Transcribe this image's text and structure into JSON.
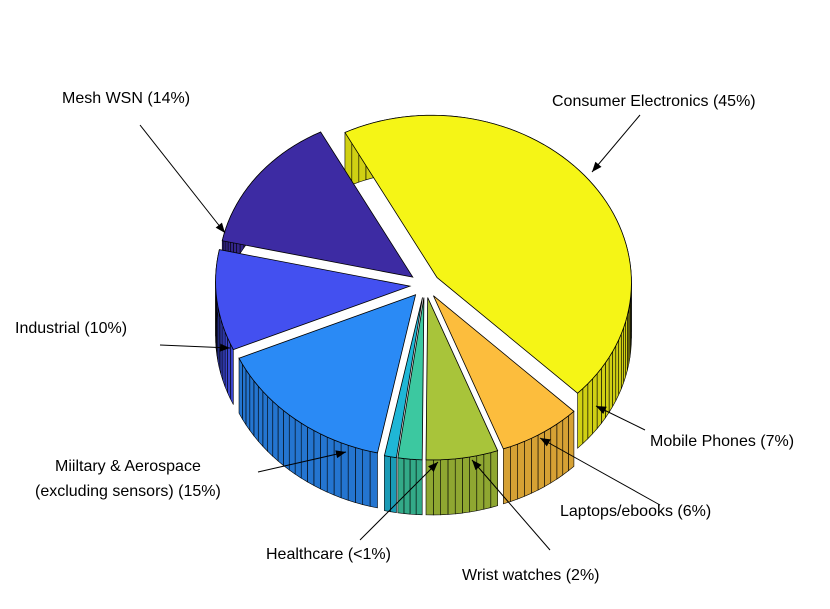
{
  "chart_data": {
    "type": "pie",
    "title": "",
    "categories": [
      "Consumer Electronics (45%)",
      "Mobile Phones (7%)",
      "Laptops/ebooks (6%)",
      "Wrist watches (2%)",
      "Healthcare (<1%)",
      "Miltary & Aerospace (excluding sensors) (15%)",
      "Industrial (10%)",
      "Mesh WSN (14%)"
    ],
    "values": [
      45,
      7,
      6,
      2,
      1,
      15,
      10,
      14
    ],
    "colors": [
      "#f5f516",
      "#fcbd3d",
      "#a8c43a",
      "#3cc8a0",
      "#1fb6d6",
      "#2a8af5",
      "#4350f0",
      "#3d2ba3"
    ],
    "exploded": true,
    "labels": {
      "consumer": "Consumer Electronics (45%)",
      "mobile": "Mobile Phones (7%)",
      "laptops": "Laptops/ebooks (6%)",
      "wrist": "Wrist watches (2%)",
      "health": "Healthcare (<1%)",
      "military_line1": "Miiltary & Aerospace",
      "military_line2": "(excluding sensors) (15%)",
      "industrial": "Industrial (10%)",
      "mesh": "Mesh WSN (14%)"
    }
  }
}
